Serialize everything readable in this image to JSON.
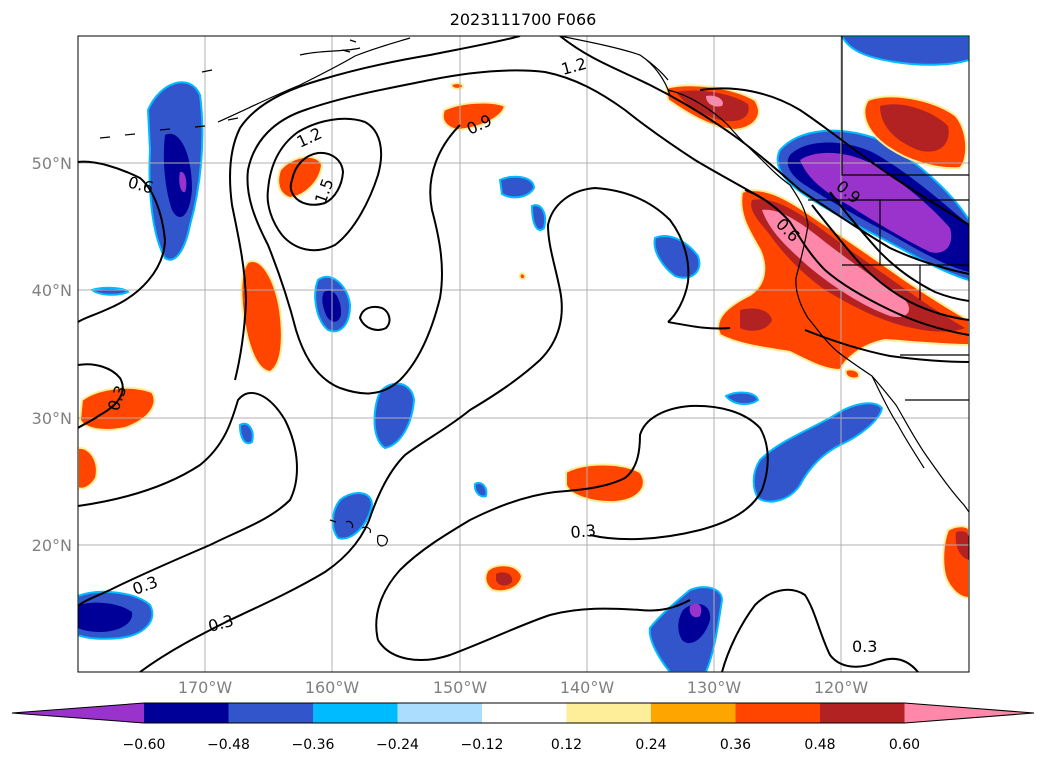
{
  "title": "2023111700 F066",
  "map": {
    "lat_labels": [
      "50°N",
      "40°N",
      "30°N",
      "20°N"
    ],
    "lon_labels": [
      "170°W",
      "160°W",
      "150°W",
      "140°W",
      "130°W",
      "120°W"
    ],
    "contour_labels": [
      "1.2",
      "1.2",
      "1.5",
      "0.9",
      "0.9",
      "0.6",
      "0.6",
      "0.3",
      "0.3",
      "0.3",
      "0.3",
      "0.3"
    ],
    "colors": {
      "n_lt_060": "#9933cc",
      "n_048_060": "#000099",
      "n_036_048": "#3355cc",
      "n_024_036": "#00bbff",
      "n_012_024": "#aaddff",
      "neutral": "#ffffff",
      "p_012_024": "#ffee99",
      "p_024_036": "#ffa500",
      "p_036_048": "#ff4500",
      "p_048_060": "#b22222",
      "p_gt_060": "#ff88aa"
    }
  },
  "colorbar": {
    "ticks": [
      "−0.60",
      "−0.48",
      "−0.36",
      "−0.24",
      "−0.12",
      "0.12",
      "0.24",
      "0.36",
      "0.48",
      "0.60"
    ]
  }
}
